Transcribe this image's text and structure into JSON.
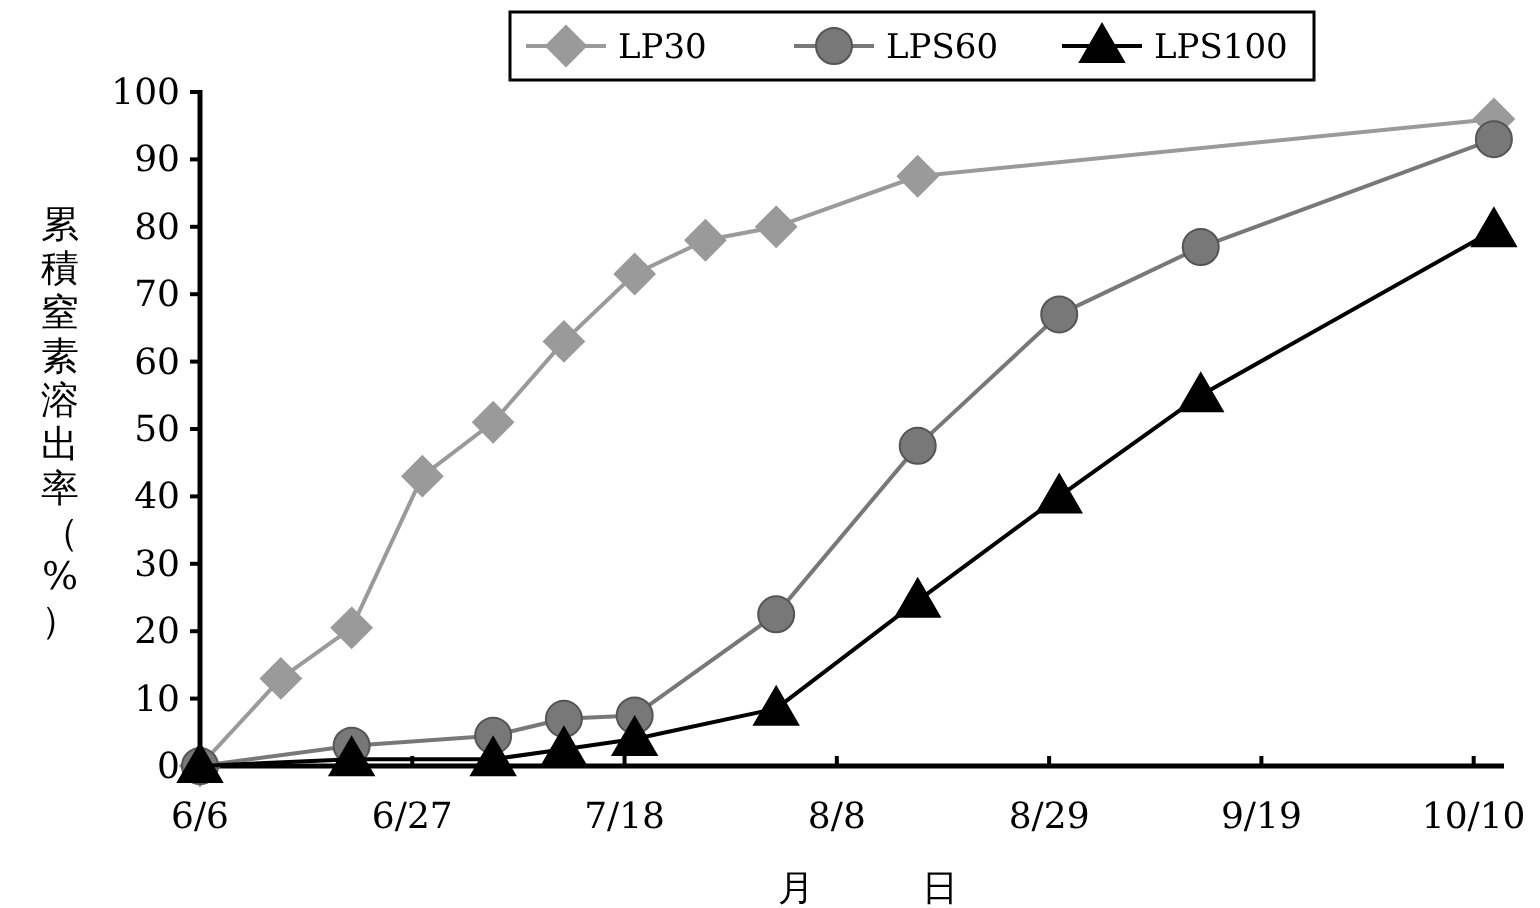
{
  "chart_data": {
    "type": "line",
    "xlabel": "月　　　日",
    "ylabel": "累積窒素溶出率（%）",
    "xlim": [
      "--06-06",
      "--10-13"
    ],
    "xticks": [
      {
        "value": "--06-06",
        "label": "6/6"
      },
      {
        "value": "--06-27",
        "label": "6/27"
      },
      {
        "value": "--07-18",
        "label": "7/18"
      },
      {
        "value": "--08-08",
        "label": "8/8"
      },
      {
        "value": "--08-29",
        "label": "8/29"
      },
      {
        "value": "--09-19",
        "label": "9/19"
      },
      {
        "value": "--10-10",
        "label": "10/10"
      }
    ],
    "ylim": [
      0,
      100
    ],
    "yticks": [
      0,
      10,
      20,
      30,
      40,
      50,
      60,
      70,
      80,
      90,
      100
    ],
    "grid": false,
    "legend": "top",
    "line_style": "solid",
    "series": [
      {
        "name": "LP30",
        "color": "#9a9a9a",
        "marker": "diamond",
        "x": [
          "--06-06",
          "--06-14",
          "--06-21",
          "--06-28",
          "--07-05",
          "--07-12",
          "--07-19",
          "--07-26",
          "--08-02",
          "--08-16",
          "--10-12"
        ],
        "values": [
          0,
          13,
          20.5,
          43,
          51,
          63,
          73,
          78,
          80,
          87.5,
          96
        ]
      },
      {
        "name": "LPS60",
        "color": "#787878",
        "marker": "circle",
        "x": [
          "--06-06",
          "--06-21",
          "--07-05",
          "--07-12",
          "--07-19",
          "--08-02",
          "--08-16",
          "--08-30",
          "--09-13",
          "--10-12"
        ],
        "values": [
          0,
          3,
          4.5,
          7,
          7.5,
          22.5,
          47.5,
          67,
          77,
          93
        ]
      },
      {
        "name": "LPS100",
        "color": "#000000",
        "marker": "triangle",
        "x": [
          "--06-06",
          "--06-21",
          "--07-05",
          "--07-12",
          "--07-19",
          "--08-02",
          "--08-16",
          "--08-30",
          "--09-13",
          "--10-12"
        ],
        "values": [
          0,
          1,
          1,
          2.5,
          4,
          8.5,
          24.5,
          40,
          55,
          79.5
        ]
      }
    ]
  }
}
